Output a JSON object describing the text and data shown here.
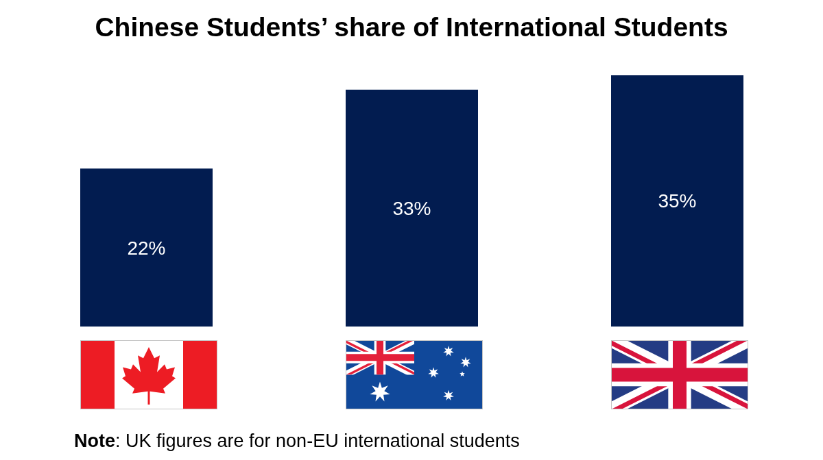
{
  "chart_data": {
    "type": "bar",
    "title": "Chinese Students’ share of International Students",
    "categories": [
      null,
      null,
      null
    ],
    "values": [
      22,
      33,
      35
    ],
    "color": "#021c50",
    "value_labels": [
      "22%",
      "33%",
      "35%"
    ],
    "tick_labels": false,
    "annotations": [
      "Note: UK figures are for non-EU international students"
    ]
  }
}
